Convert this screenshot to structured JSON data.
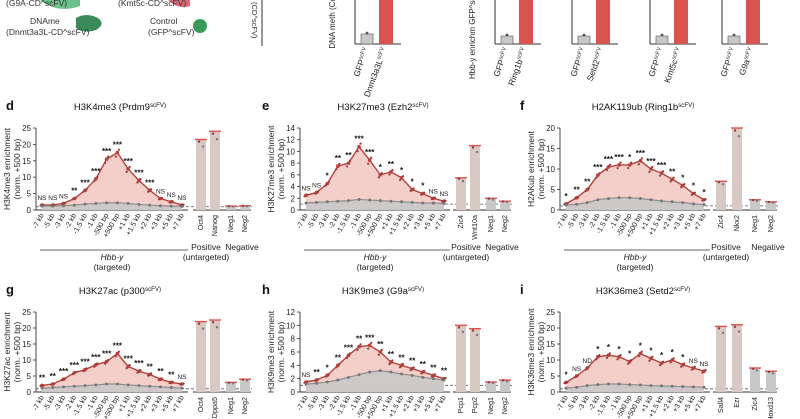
{
  "colors": {
    "red_line": "#b5403c",
    "red_fill": "#f2c6bf",
    "red_bar": "#d9534f",
    "grey_line": "#8e8e8e",
    "grey_fill": "#c9c9c9",
    "bar_tan": "#d8c9c3",
    "bar_grey": "#c8c8c8",
    "green_dark": "#3a8a5a",
    "green_light": "#6cc08a",
    "pink": "#e06a7c",
    "dashed": "#555555"
  },
  "top_strip": {
    "legend": {
      "g9a": "(G9A-CD^scFV)",
      "kmt5c": "(Kmt5c-CD^scFV)",
      "dnmt_line1": "DNAme",
      "dnmt_line2": "(Dnmt3a3L-CD^scFV)",
      "control_line1": "Control",
      "control_line2": "(GFP^scFV)",
      "axis_fragment": "(CD^scFV)"
    },
    "mini_panels": [
      {
        "ylabel": "DNA meth (Col",
        "xlabels": [
          "GFP^scFV",
          "Dnmt3a3L^scFV"
        ]
      },
      {
        "ylabel": "Hbb-y enrichm GFP^scFV (CUT",
        "xlabels": [
          "GFP^scFV",
          "Ring1b^scFV"
        ]
      },
      {
        "ylabel": "",
        "xlabels": [
          "GFP^scFV",
          "Setd2^scFV"
        ]
      },
      {
        "ylabel": "",
        "xlabels": [
          "GFP^scFV",
          "Kmt5c^scFV"
        ]
      },
      {
        "ylabel": "",
        "xlabels": [
          "GFP^scFV",
          "G9a^scFV"
        ]
      }
    ]
  },
  "chart_data": [
    {
      "panel": "d",
      "type": "line",
      "title": "H3K4me3 (Prdm9^scFV)",
      "ylabel_1": "H3K4me3 enrichment",
      "ylabel_2": "(norm. +500 bp)",
      "ylim": [
        0,
        25
      ],
      "yticks": [
        0,
        5,
        10,
        15,
        20,
        25
      ],
      "categories": [
        "-7 kb",
        "-5 kb",
        "-3 kb",
        "-2 kb",
        "-1.5 kb",
        "-1 kb",
        "-500 bp",
        "+500 bp",
        "+1 kb",
        "+1.5 kb",
        "+2 kb",
        "+3 kb",
        "+5 kb",
        "+7 kb"
      ],
      "series": [
        {
          "name": "targeted",
          "values": [
            1.5,
            1.5,
            2.0,
            3.5,
            6.0,
            9.5,
            15.5,
            17.5,
            12.5,
            9.0,
            6.0,
            3.5,
            2.5,
            1.5
          ]
        },
        {
          "name": "control",
          "values": [
            1.2,
            1.2,
            1.3,
            1.5,
            1.8,
            2.0,
            2.2,
            2.2,
            2.0,
            1.7,
            1.5,
            1.3,
            1.2,
            1.1
          ]
        }
      ],
      "stars": [
        "NS",
        "NS",
        "NS",
        "**",
        "***",
        "***",
        "***",
        "***",
        "***",
        "***",
        "***",
        "NS",
        "NS",
        "NS"
      ],
      "group_label_1": "Hbb-y",
      "group_label_2": "(targeted)",
      "bars": {
        "labels": [
          "Oct4",
          "Nanog",
          "Neg1",
          "Neg2"
        ],
        "values": [
          21.5,
          24.0,
          1.2,
          1.3
        ]
      },
      "pos_label_1": "Positive",
      "pos_label_2": "(untargeted)",
      "neg_label": "Negative",
      "dashed_y": 1
    },
    {
      "panel": "e",
      "type": "line",
      "title": "H3K27me3 (Ezh2^scFV)",
      "ylabel_1": "H3K27me3 enrichment",
      "ylabel_2": "(norm. +500 bp)",
      "ylim": [
        0,
        14
      ],
      "yticks": [
        0,
        2,
        4,
        6,
        8,
        10,
        12,
        14
      ],
      "categories": [
        "-7 kb",
        "-5 kb",
        "-3 kb",
        "-2 kb",
        "-1.5 kb",
        "-1 kb",
        "-500 bp",
        "+500 bp",
        "+1 kb",
        "+1.5 kb",
        "+2 kb",
        "+3 kb",
        "+5 kb",
        "+7 kb"
      ],
      "series": [
        {
          "name": "targeted",
          "values": [
            2.5,
            3.0,
            4.5,
            7.5,
            8.0,
            10.8,
            8.5,
            6.0,
            6.5,
            5.5,
            3.5,
            2.8,
            2.0,
            1.5
          ]
        },
        {
          "name": "control",
          "values": [
            1.2,
            1.3,
            1.4,
            1.5,
            1.6,
            1.8,
            1.7,
            1.6,
            1.5,
            1.4,
            1.3,
            1.2,
            1.2,
            1.1
          ]
        }
      ],
      "stars": [
        "NS",
        "NS",
        "*",
        "**",
        "**",
        "***",
        "***",
        "*",
        "**",
        "*",
        "*",
        "*",
        "NS",
        "NS"
      ],
      "group_label_1": "Hbb-y",
      "group_label_2": "(targeted)",
      "bars": {
        "labels": [
          "Zic4",
          "Wnt10a",
          "Neg1",
          "Neg2"
        ],
        "values": [
          5.5,
          11.0,
          2.0,
          1.5
        ]
      },
      "pos_label_1": "Positive",
      "pos_label_2": "(untargeted)",
      "neg_label": "Negative",
      "dashed_y": 1
    },
    {
      "panel": "f",
      "type": "line",
      "title": "H2AK119ub (Ring1b^scFV)",
      "ylabel_1": "H2AKub enrichment",
      "ylabel_2": "(norm. +500 bp)",
      "ylim": [
        0,
        20
      ],
      "yticks": [
        0,
        5,
        10,
        15,
        20
      ],
      "categories": [
        "-7 kb",
        "-5 kb",
        "-3 kb",
        "-2 kb",
        "-1.5 kb",
        "-1 kb",
        "-500 bp",
        "+500 bp",
        "+1 kb",
        "+1.5 kb",
        "+2 kb",
        "+3 kb",
        "+5 kb",
        "+7 kb"
      ],
      "series": [
        {
          "name": "targeted",
          "values": [
            1.5,
            3.0,
            5.0,
            8.5,
            10.5,
            11.0,
            11.0,
            12.0,
            10.0,
            9.0,
            7.5,
            6.0,
            4.0,
            2.5
          ]
        },
        {
          "name": "control",
          "values": [
            1.2,
            1.4,
            1.8,
            2.5,
            2.8,
            3.0,
            3.0,
            2.8,
            2.5,
            2.2,
            2.0,
            1.8,
            1.5,
            1.3
          ]
        }
      ],
      "stars": [
        "*",
        "**",
        "**",
        "***",
        "***",
        "***",
        "*",
        "***",
        "***",
        "***",
        "**",
        "*",
        "*",
        "*"
      ],
      "group_label_1": "Hbb-y",
      "group_label_2": "(targeted)",
      "bars": {
        "labels": [
          "Zic4",
          "Nkx2",
          "Neg1",
          "Neg2"
        ],
        "values": [
          7.0,
          20.0,
          2.5,
          2.0
        ]
      },
      "pos_label_1": "Positive",
      "pos_label_2": "(untargeted)",
      "neg_label": "Negative",
      "dashed_y": 1
    },
    {
      "panel": "g",
      "type": "line",
      "title": "H3K27ac (p300^scFV)",
      "ylabel_1": "H3K27ac enrichment",
      "ylabel_2": "(norm. +500 bp)",
      "ylim": [
        0,
        25
      ],
      "yticks": [
        0,
        5,
        10,
        15,
        20,
        25
      ],
      "categories": [
        "-7 kb",
        "-5 kb",
        "-3 kb",
        "-2 kb",
        "-1.5 kb",
        "-1 kb",
        "-500 bp",
        "+500 bp",
        "+1 kb",
        "+1.5 kb",
        "+2 kb",
        "+3 kb",
        "+5 kb",
        "+7 kb"
      ],
      "series": [
        {
          "name": "targeted",
          "values": [
            2.0,
            2.5,
            4.0,
            6.0,
            7.0,
            8.5,
            9.5,
            12.0,
            8.0,
            6.5,
            5.5,
            4.0,
            3.0,
            2.5
          ]
        },
        {
          "name": "control",
          "values": [
            1.2,
            1.4,
            1.6,
            1.8,
            2.0,
            2.2,
            2.5,
            2.5,
            2.2,
            2.0,
            1.8,
            1.6,
            1.4,
            1.2
          ]
        }
      ],
      "stars": [
        "**",
        "**",
        "***",
        "***",
        "***",
        "***",
        "***",
        "***",
        "***",
        "***",
        "**",
        "**",
        "**",
        "NS"
      ],
      "group_label_1": "",
      "group_label_2": "",
      "bars": {
        "labels": [
          "Oct4",
          "Dppa5",
          "Neg1",
          "Neg2"
        ],
        "values": [
          22.0,
          22.5,
          3.0,
          4.0
        ]
      },
      "pos_label_1": "",
      "pos_label_2": "",
      "neg_label": "",
      "dashed_y": 1
    },
    {
      "panel": "h",
      "type": "line",
      "title": "H3K9me3 (G9a^scFV)",
      "ylabel_1": "H3K9me3 enrichment",
      "ylabel_2": "(norm. +500 bp)",
      "ylim": [
        0,
        12
      ],
      "yticks": [
        0,
        2,
        4,
        6,
        8,
        10,
        12
      ],
      "categories": [
        "-7 kb",
        "-5 kb",
        "-3 kb",
        "-2 kb",
        "-1.5 kb",
        "-1 kb",
        "-500 bp",
        "+500 bp",
        "+1 kb",
        "+1.5 kb",
        "+2 kb",
        "+3 kb",
        "+5 kb",
        "+7 kb"
      ],
      "series": [
        {
          "name": "targeted",
          "values": [
            1.5,
            1.8,
            2.5,
            4.0,
            5.5,
            6.8,
            7.0,
            6.0,
            4.5,
            4.0,
            3.5,
            3.0,
            2.5,
            2.0
          ]
        },
        {
          "name": "control",
          "values": [
            1.2,
            1.3,
            1.5,
            1.8,
            2.2,
            2.6,
            3.0,
            3.2,
            3.0,
            2.7,
            2.5,
            2.2,
            2.0,
            1.8
          ]
        }
      ],
      "stars": [
        "NS",
        "**",
        "*",
        "**",
        "***",
        "**",
        "***",
        "**",
        "**",
        "**",
        "**",
        "**",
        "**",
        "**"
      ],
      "group_label_1": "",
      "group_label_2": "",
      "bars": {
        "labels": [
          "Pcp1",
          "Pcp2",
          "Neg1",
          "Neg2"
        ],
        "values": [
          10.0,
          9.5,
          1.5,
          1.8
        ]
      },
      "pos_label_1": "",
      "pos_label_2": "",
      "neg_label": "",
      "dashed_y": 1
    },
    {
      "panel": "i",
      "type": "line",
      "title": "H3K36me3 (Setd2^scFV)",
      "ylabel_1": "H3K36me3 enrichment",
      "ylabel_2": "(norm. +500 bp)",
      "ylim": [
        0,
        25
      ],
      "yticks": [
        0,
        5,
        10,
        15,
        20,
        25
      ],
      "categories": [
        "-7 kb",
        "-5 kb",
        "-3 kb",
        "-2 kb",
        "-1.5 kb",
        "-1 kb",
        "-500 bp",
        "+500 bp",
        "+1 kb",
        "+1.5 kb",
        "+2 kb",
        "+3 kb",
        "+5 kb",
        "+7 kb"
      ],
      "series": [
        {
          "name": "targeted",
          "values": [
            3.0,
            5.0,
            7.5,
            11.0,
            11.5,
            11.0,
            9.5,
            12.0,
            10.5,
            9.0,
            10.0,
            8.5,
            7.5,
            6.5
          ]
        },
        {
          "name": "control",
          "values": [
            1.2,
            1.5,
            2.0,
            2.3,
            2.5,
            2.5,
            2.3,
            2.2,
            2.0,
            1.9,
            1.8,
            1.7,
            1.6,
            1.5
          ]
        }
      ],
      "stars": [
        "*",
        "NS",
        "ND",
        "*",
        "*",
        "*",
        "*",
        "*",
        "*",
        "*",
        "*",
        "*",
        "NS",
        "NS"
      ],
      "group_label_1": "",
      "group_label_2": "",
      "bars": {
        "labels": [
          "Sall4",
          "Ezr",
          "Zic4",
          "Hoxd13"
        ],
        "values": [
          20.5,
          21.0,
          7.5,
          6.5
        ]
      },
      "pos_label_1": "",
      "pos_label_2": "",
      "neg_label": "",
      "dashed_y": 1
    }
  ]
}
